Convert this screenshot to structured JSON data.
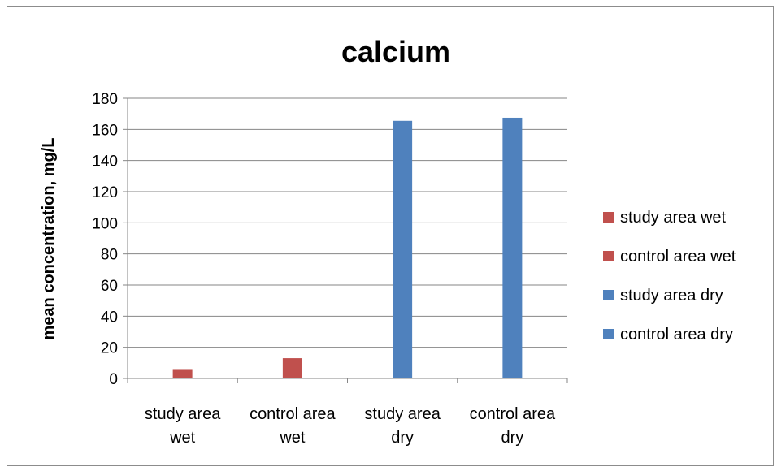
{
  "chart_data": {
    "type": "bar",
    "title": "calcium",
    "xlabel": "",
    "ylabel": "mean concentration, mg/L",
    "ylim": [
      0,
      180
    ],
    "yticks": [
      0,
      20,
      40,
      60,
      80,
      100,
      120,
      140,
      160,
      180
    ],
    "grid": true,
    "legend_position": "right",
    "categories": [
      [
        "study area",
        "wet"
      ],
      [
        "control area",
        "wet"
      ],
      [
        "study area",
        "dry"
      ],
      [
        "control area",
        "dry"
      ]
    ],
    "series": [
      {
        "name": "study area wet",
        "color": "#c0504d",
        "values": [
          5.5,
          null,
          null,
          null
        ]
      },
      {
        "name": "control area wet",
        "color": "#c0504d",
        "values": [
          null,
          13,
          null,
          null
        ]
      },
      {
        "name": "study area dry",
        "color": "#4f81bd",
        "values": [
          null,
          null,
          165.5,
          null
        ]
      },
      {
        "name": "control area dry",
        "color": "#4f81bd",
        "values": [
          null,
          null,
          null,
          167.5
        ]
      }
    ]
  }
}
